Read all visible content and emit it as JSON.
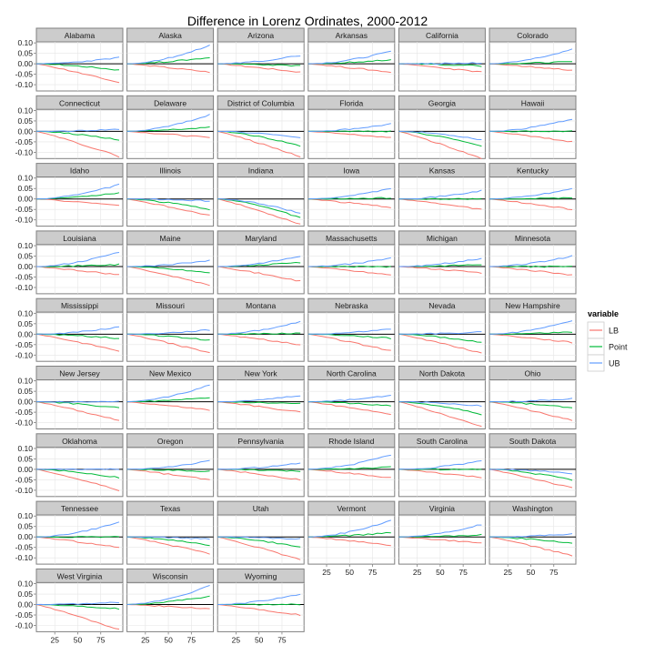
{
  "chart_data": {
    "type": "line",
    "title": "Difference in Lorenz Ordinates, 2000-2012",
    "xlabel": "",
    "ylabel": "",
    "xlim": [
      5,
      99
    ],
    "ylim": [
      -0.13,
      0.105
    ],
    "x_ticks": [
      25,
      50,
      75
    ],
    "y_ticks": [
      0.1,
      0.05,
      0.0,
      -0.05,
      -0.1
    ],
    "y_tick_labels": [
      "0.10",
      "0.05",
      "0.00",
      "-0.05",
      "-0.10"
    ],
    "x": [
      5,
      10,
      15,
      20,
      25,
      30,
      35,
      40,
      45,
      50,
      55,
      60,
      65,
      70,
      75,
      80,
      85,
      90,
      95
    ],
    "reference_line": 0,
    "grid": true,
    "legend": {
      "title": "variable",
      "placement": "right",
      "entries": [
        {
          "name": "LB",
          "color": "#f8766d"
        },
        {
          "name": "Point",
          "color": "#00ba38"
        },
        {
          "name": "UB",
          "color": "#619cff"
        }
      ]
    },
    "facets": [
      {
        "name": "Alabama",
        "ub_end": 0.03,
        "point_end": -0.03,
        "lb_end": -0.09
      },
      {
        "name": "Alaska",
        "ub_end": 0.09,
        "point_end": 0.03,
        "lb_end": -0.04
      },
      {
        "name": "Arizona",
        "ub_end": 0.04,
        "point_end": -0.01,
        "lb_end": -0.04
      },
      {
        "name": "Arkansas",
        "ub_end": 0.06,
        "point_end": 0.02,
        "lb_end": -0.04
      },
      {
        "name": "California",
        "ub_end": 0.005,
        "point_end": -0.01,
        "lb_end": -0.04
      },
      {
        "name": "Colorado",
        "ub_end": 0.07,
        "point_end": 0.01,
        "lb_end": -0.03
      },
      {
        "name": "Connecticut",
        "ub_end": 0.01,
        "point_end": -0.04,
        "lb_end": -0.12
      },
      {
        "name": "Delaware",
        "ub_end": 0.08,
        "point_end": 0.02,
        "lb_end": -0.03
      },
      {
        "name": "District of Columbia",
        "ub_end": -0.03,
        "point_end": -0.07,
        "lb_end": -0.12
      },
      {
        "name": "Florida",
        "ub_end": 0.035,
        "point_end": 0.0,
        "lb_end": -0.03
      },
      {
        "name": "Georgia",
        "ub_end": -0.04,
        "point_end": -0.07,
        "lb_end": -0.13
      },
      {
        "name": "Hawaii",
        "ub_end": 0.06,
        "point_end": 0.0,
        "lb_end": -0.05
      },
      {
        "name": "Idaho",
        "ub_end": 0.07,
        "point_end": 0.03,
        "lb_end": -0.03
      },
      {
        "name": "Illinois",
        "ub_end": -0.01,
        "point_end": -0.05,
        "lb_end": -0.08
      },
      {
        "name": "Indiana",
        "ub_end": -0.07,
        "point_end": -0.09,
        "lb_end": -0.12
      },
      {
        "name": "Iowa",
        "ub_end": 0.05,
        "point_end": 0.005,
        "lb_end": -0.04
      },
      {
        "name": "Kansas",
        "ub_end": 0.04,
        "point_end": 0.0,
        "lb_end": -0.05
      },
      {
        "name": "Kentucky",
        "ub_end": 0.05,
        "point_end": 0.005,
        "lb_end": -0.05
      },
      {
        "name": "Louisiana",
        "ub_end": 0.07,
        "point_end": 0.01,
        "lb_end": -0.04
      },
      {
        "name": "Maine",
        "ub_end": 0.03,
        "point_end": -0.03,
        "lb_end": -0.09
      },
      {
        "name": "Maryland",
        "ub_end": 0.05,
        "point_end": 0.02,
        "lb_end": -0.07
      },
      {
        "name": "Massachusetts",
        "ub_end": 0.04,
        "point_end": 0.0,
        "lb_end": -0.04
      },
      {
        "name": "Michigan",
        "ub_end": 0.04,
        "point_end": 0.01,
        "lb_end": -0.03
      },
      {
        "name": "Minnesota",
        "ub_end": 0.05,
        "point_end": 0.0,
        "lb_end": -0.04
      },
      {
        "name": "Mississippi",
        "ub_end": 0.035,
        "point_end": -0.02,
        "lb_end": -0.08
      },
      {
        "name": "Missouri",
        "ub_end": 0.02,
        "point_end": -0.03,
        "lb_end": -0.09
      },
      {
        "name": "Montana",
        "ub_end": 0.06,
        "point_end": 0.005,
        "lb_end": -0.05
      },
      {
        "name": "Nebraska",
        "ub_end": 0.025,
        "point_end": -0.02,
        "lb_end": -0.08
      },
      {
        "name": "Nevada",
        "ub_end": 0.01,
        "point_end": -0.04,
        "lb_end": -0.09
      },
      {
        "name": "New Hampshire",
        "ub_end": 0.065,
        "point_end": 0.01,
        "lb_end": -0.04
      },
      {
        "name": "New Jersey",
        "ub_end": 0.0,
        "point_end": -0.03,
        "lb_end": -0.09
      },
      {
        "name": "New Mexico",
        "ub_end": 0.08,
        "point_end": 0.02,
        "lb_end": -0.04
      },
      {
        "name": "New York",
        "ub_end": 0.03,
        "point_end": -0.01,
        "lb_end": -0.05
      },
      {
        "name": "North Carolina",
        "ub_end": 0.03,
        "point_end": -0.02,
        "lb_end": -0.06
      },
      {
        "name": "North Dakota",
        "ub_end": -0.02,
        "point_end": -0.06,
        "lb_end": -0.12
      },
      {
        "name": "Ohio",
        "ub_end": 0.015,
        "point_end": -0.03,
        "lb_end": -0.09
      },
      {
        "name": "Oklahoma",
        "ub_end": 0.0,
        "point_end": -0.04,
        "lb_end": -0.1
      },
      {
        "name": "Oregon",
        "ub_end": 0.04,
        "point_end": -0.01,
        "lb_end": -0.05
      },
      {
        "name": "Pennsylvania",
        "ub_end": 0.03,
        "point_end": -0.01,
        "lb_end": -0.05
      },
      {
        "name": "Rhode Island",
        "ub_end": 0.07,
        "point_end": 0.01,
        "lb_end": -0.04
      },
      {
        "name": "South Carolina",
        "ub_end": 0.04,
        "point_end": 0.0,
        "lb_end": -0.04
      },
      {
        "name": "South Dakota",
        "ub_end": -0.02,
        "point_end": -0.05,
        "lb_end": -0.09
      },
      {
        "name": "Tennessee",
        "ub_end": 0.07,
        "point_end": 0.0,
        "lb_end": -0.05
      },
      {
        "name": "Texas",
        "ub_end": -0.01,
        "point_end": -0.04,
        "lb_end": -0.08
      },
      {
        "name": "Utah",
        "ub_end": -0.01,
        "point_end": -0.05,
        "lb_end": -0.11
      },
      {
        "name": "Vermont",
        "ub_end": 0.08,
        "point_end": 0.02,
        "lb_end": -0.04
      },
      {
        "name": "Virginia",
        "ub_end": 0.06,
        "point_end": 0.01,
        "lb_end": -0.03
      },
      {
        "name": "Washington",
        "ub_end": 0.015,
        "point_end": -0.03,
        "lb_end": -0.09
      },
      {
        "name": "West Virginia",
        "ub_end": 0.01,
        "point_end": -0.02,
        "lb_end": -0.12
      },
      {
        "name": "Wisconsin",
        "ub_end": 0.09,
        "point_end": 0.04,
        "lb_end": -0.02
      },
      {
        "name": "Wyoming",
        "ub_end": 0.05,
        "point_end": 0.0,
        "lb_end": -0.05
      }
    ]
  }
}
